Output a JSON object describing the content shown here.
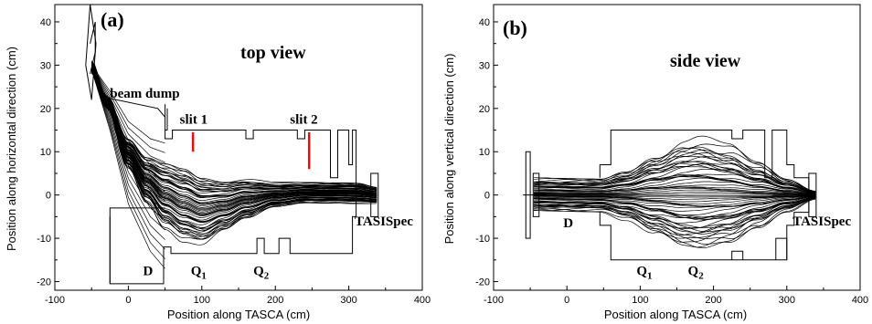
{
  "chart_data": [
    {
      "panel": "(a)",
      "type": "line",
      "view_title": "top view",
      "xlabel": "Position along TASCA (cm)",
      "ylabel": "Position along horizontal direction (cm)",
      "xlim": [
        -100,
        400
      ],
      "ylim": [
        -22,
        44
      ],
      "xticks": [
        -100,
        0,
        100,
        200,
        300,
        400
      ],
      "yticks": [
        -20,
        -10,
        0,
        10,
        20,
        30,
        40
      ],
      "grid": false,
      "trajectory_count_note": "dense bundle of ion trajectories",
      "annotations": [
        {
          "text": "beam dump",
          "x": -25,
          "y": 22.5
        },
        {
          "text": "slit 1",
          "x": 70,
          "y": 16.5
        },
        {
          "text": "slit 2",
          "x": 220,
          "y": 16.5
        },
        {
          "text": "D",
          "x": 20,
          "y": -18.5
        },
        {
          "text": "Q",
          "sub": "1",
          "x": 85,
          "y": -18.5
        },
        {
          "text": "Q",
          "sub": "2",
          "x": 170,
          "y": -18.5
        },
        {
          "text": "TASISpec",
          "x": 308,
          "y": -7
        }
      ],
      "slits": [
        {
          "name": "slit 1",
          "x": 88,
          "y_from": 10,
          "y_to": 14.5
        },
        {
          "name": "slit 2",
          "x": 246,
          "y_from": 6,
          "y_to": 14.5
        }
      ],
      "series": [
        {
          "family": "core",
          "x": [
            -50,
            -30,
            0,
            25,
            50,
            75,
            100,
            130,
            160,
            200,
            240,
            280,
            310,
            340
          ],
          "envelope_upper": [
            31,
            23,
            13,
            9,
            8,
            7,
            5,
            4,
            4,
            3,
            3,
            3,
            3,
            2
          ],
          "envelope_lower": [
            28,
            20,
            6,
            -2,
            -8,
            -11,
            -12,
            -9,
            -6,
            -3,
            -2,
            -2,
            -2,
            -2
          ]
        },
        {
          "family": "lost-high",
          "x": [
            -50,
            -25,
            0,
            30,
            50
          ],
          "y": [
            30,
            24,
            17,
            13,
            12
          ]
        },
        {
          "family": "lost-low",
          "x": [
            -50,
            -25,
            0,
            30,
            50
          ],
          "y": [
            29,
            15,
            -2,
            -13,
            -17
          ]
        }
      ]
    },
    {
      "panel": "(b)",
      "type": "line",
      "view_title": "side view",
      "xlabel": "Position along TASCA (cm)",
      "ylabel": "Position along vertical direction (cm)",
      "xlim": [
        -100,
        400
      ],
      "ylim": [
        -22,
        44
      ],
      "xticks": [
        -100,
        0,
        100,
        200,
        300,
        400
      ],
      "yticks": [
        -20,
        -10,
        0,
        10,
        20,
        30,
        40
      ],
      "grid": false,
      "annotations": [
        {
          "text": "D",
          "x": -5,
          "y": -7.5
        },
        {
          "text": "Q",
          "sub": "1",
          "x": 95,
          "y": -18.5
        },
        {
          "text": "Q",
          "sub": "2",
          "x": 165,
          "y": -18.5
        },
        {
          "text": "TASISpec",
          "x": 308,
          "y": -7
        }
      ],
      "series": [
        {
          "family": "core",
          "x": [
            -45,
            0,
            45,
            80,
            120,
            160,
            180,
            220,
            260,
            300,
            340
          ],
          "envelope_upper": [
            4,
            4,
            4,
            6,
            10,
            13.5,
            14,
            12,
            8,
            4,
            1
          ],
          "envelope_lower": [
            -4,
            -4,
            -4,
            -6,
            -10,
            -13.5,
            -14,
            -12,
            -8,
            -4,
            -1
          ]
        }
      ]
    }
  ]
}
